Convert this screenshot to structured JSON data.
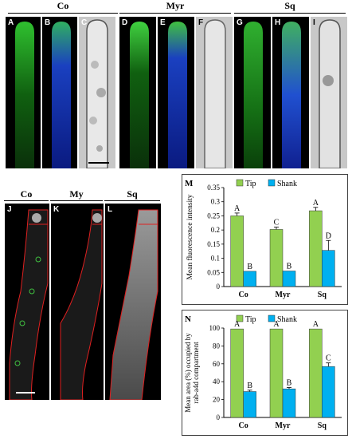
{
  "figure": {
    "top_groups": [
      "Co",
      "Myr",
      "Sq"
    ],
    "top_panels": [
      "A",
      "B",
      "C",
      "D",
      "E",
      "F",
      "G",
      "H",
      "I"
    ],
    "bottom_groups": [
      "Co",
      "My",
      "Sq"
    ],
    "bottom_panels": [
      "J",
      "K",
      "L"
    ]
  },
  "colors": {
    "tip": "#92d050",
    "shank": "#00b0f0",
    "gfp": "#1fa01f",
    "blue": "#1030d0",
    "outline_red": "#e02020",
    "outline_green": "#40c040"
  },
  "chart_data": [
    {
      "type": "bar",
      "panel_label": "M",
      "categories": [
        "Co",
        "Myr",
        "Sq"
      ],
      "series": [
        {
          "name": "Tip",
          "values": [
            0.25,
            0.202,
            0.268
          ],
          "errors": [
            0.01,
            0.008,
            0.012
          ],
          "letters": [
            "A",
            "C",
            "A"
          ]
        },
        {
          "name": "Shank",
          "values": [
            0.054,
            0.055,
            0.128
          ],
          "errors": [
            0.0,
            0.0,
            0.035
          ],
          "letters": [
            "B",
            "B",
            "D"
          ]
        }
      ],
      "ylabel": "Mean fluorescence intensity",
      "ylim": [
        0,
        0.35
      ],
      "yticks": [
        "0",
        "0.05",
        "0.1",
        "0.15",
        "0.2",
        "0.25",
        "0.3",
        "0.35"
      ],
      "legend": "top"
    },
    {
      "type": "bar",
      "panel_label": "N",
      "categories": [
        "Co",
        "Myr",
        "Sq"
      ],
      "series": [
        {
          "name": "Tip",
          "values": [
            99,
            99,
            99
          ],
          "errors": [
            0,
            0,
            0
          ],
          "letters": [
            "A",
            "A",
            "A"
          ]
        },
        {
          "name": "Shank",
          "values": [
            29,
            32,
            57
          ],
          "errors": [
            1.5,
            1.5,
            4
          ],
          "letters": [
            "B",
            "B",
            "C"
          ]
        }
      ],
      "ylabel": "Mean area (%) occupied by rab-a4d compartment",
      "ylim": [
        0,
        100
      ],
      "yticks": [
        "0",
        "20",
        "40",
        "60",
        "80",
        "100"
      ],
      "legend": "top"
    }
  ]
}
